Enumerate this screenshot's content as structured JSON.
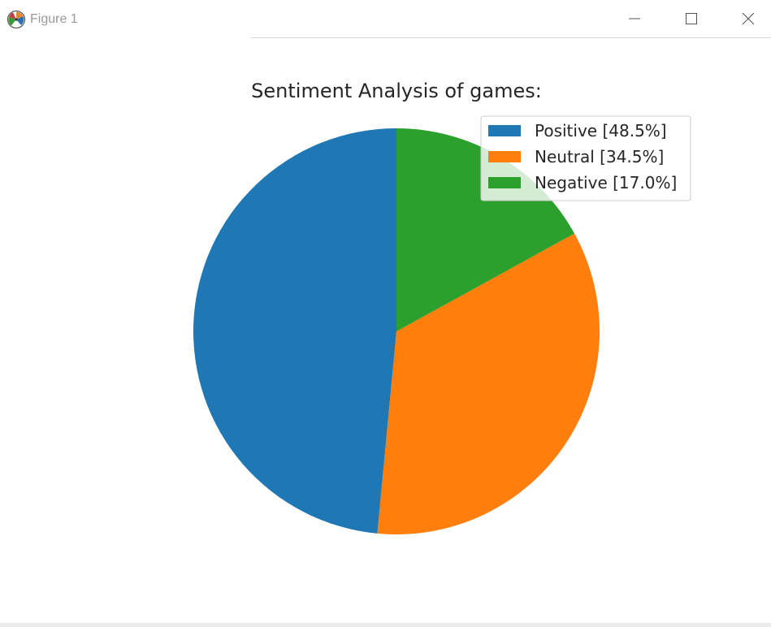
{
  "window": {
    "title": "Figure 1",
    "icon": "matplotlib-logo-icon",
    "controls": [
      "minimize-icon",
      "maximize-icon",
      "close-icon"
    ]
  },
  "chart_data": {
    "type": "pie",
    "title": "Sentiment Analysis of games:",
    "start_angle_deg": 90,
    "direction": "counterclockwise",
    "legend_position": "top-right",
    "slices": [
      {
        "label": "Positive [48.5%]",
        "value": 48.5,
        "color": "#1f77b4"
      },
      {
        "label": "Neutral [34.5%]",
        "value": 34.5,
        "color": "#ff7f0e"
      },
      {
        "label": "Negative [17.0%]",
        "value": 17.0,
        "color": "#2ca02c"
      }
    ]
  }
}
